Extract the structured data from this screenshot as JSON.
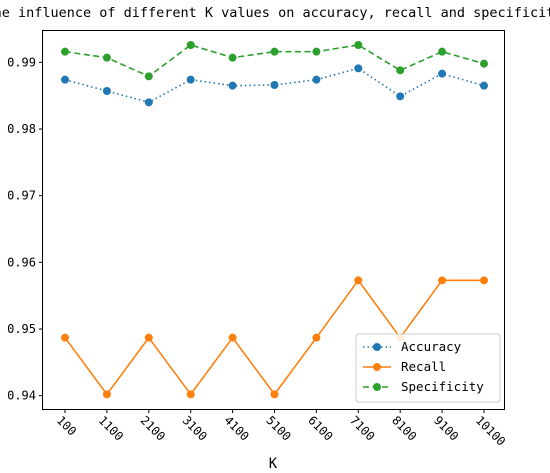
{
  "chart_data": {
    "type": "line",
    "title": "The influence of different K values on accuracy, recall and specificity",
    "xlabel": "K",
    "ylabel": "",
    "categories": [
      "100",
      "1100",
      "2100",
      "3100",
      "4100",
      "5100",
      "6100",
      "7100",
      "8100",
      "9100",
      "10100"
    ],
    "ylim": [
      0.938,
      0.9947
    ],
    "yticks": [
      0.94,
      0.95,
      0.96,
      0.97,
      0.98,
      0.99
    ],
    "ytick_labels": [
      "0.94",
      "0.95",
      "0.96",
      "0.97",
      "0.98",
      "0.99"
    ],
    "grid": false,
    "legend": "lower-right",
    "series": [
      {
        "name": "Accuracy",
        "color": "#1f77b4",
        "linestyle": "dotted",
        "marker": "circle",
        "values": [
          0.9874,
          0.9857,
          0.984,
          0.9874,
          0.9865,
          0.9866,
          0.9874,
          0.9891,
          0.9849,
          0.9883,
          0.9865
        ]
      },
      {
        "name": "Recall",
        "color": "#ff7f0e",
        "linestyle": "solid",
        "marker": "circle",
        "values": [
          0.9487,
          0.9402,
          0.9487,
          0.9402,
          0.9487,
          0.9402,
          0.9487,
          0.9573,
          0.9487,
          0.9573,
          0.9573
        ]
      },
      {
        "name": "Specificity",
        "color": "#2ca02c",
        "linestyle": "dashed",
        "marker": "circle",
        "values": [
          0.9916,
          0.9907,
          0.9879,
          0.9926,
          0.9907,
          0.9916,
          0.9916,
          0.9926,
          0.9888,
          0.9916,
          0.9898
        ]
      }
    ]
  }
}
